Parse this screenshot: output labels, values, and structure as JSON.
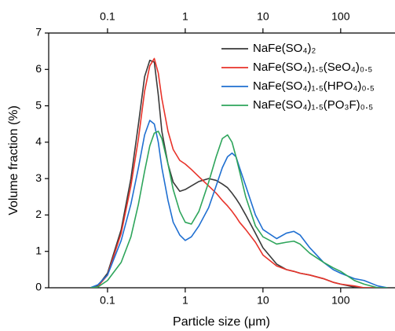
{
  "chart_data": {
    "type": "line",
    "xlabel": "Particle size (μm)",
    "ylabel": "Volume fraction (%)",
    "xscale": "log",
    "xlim": [
      0.0175,
      500
    ],
    "ylim": [
      0,
      7
    ],
    "xticks": [
      0.1,
      1,
      10,
      100
    ],
    "yticks": [
      0,
      1,
      2,
      3,
      4,
      5,
      6,
      7
    ],
    "legend": "upper right",
    "x": [
      0.06,
      0.075,
      0.1,
      0.15,
      0.2,
      0.25,
      0.3,
      0.35,
      0.4,
      0.45,
      0.5,
      0.6,
      0.7,
      0.85,
      1,
      1.2,
      1.5,
      2,
      2.5,
      3,
      3.5,
      4,
      4.5,
      5,
      6,
      8,
      10,
      15,
      20,
      25,
      30,
      40,
      60,
      80,
      100,
      150,
      200,
      300,
      400
    ],
    "series": [
      {
        "name": "NaFe(SO₄)₂",
        "color": "#3a3a3a",
        "values": [
          0,
          0.05,
          0.4,
          1.6,
          3.0,
          4.5,
          5.8,
          6.25,
          6.2,
          5.3,
          4.3,
          3.4,
          2.9,
          2.65,
          2.7,
          2.8,
          2.92,
          3.0,
          2.95,
          2.85,
          2.75,
          2.6,
          2.45,
          2.3,
          2.0,
          1.5,
          1.1,
          0.65,
          0.5,
          0.45,
          0.4,
          0.35,
          0.25,
          0.15,
          0.1,
          0.02,
          0,
          0,
          0
        ]
      },
      {
        "name": "NaFe(SO₄)₁.₅(SeO₄)₀.₅",
        "color": "#e8332a",
        "values": [
          0,
          0.03,
          0.35,
          1.5,
          2.8,
          4.1,
          5.4,
          6.1,
          6.3,
          5.9,
          5.2,
          4.3,
          3.8,
          3.5,
          3.4,
          3.25,
          3.05,
          2.8,
          2.6,
          2.4,
          2.25,
          2.1,
          1.95,
          1.8,
          1.6,
          1.25,
          0.9,
          0.6,
          0.5,
          0.45,
          0.4,
          0.35,
          0.25,
          0.15,
          0.1,
          0.05,
          0,
          0,
          0
        ]
      },
      {
        "name": "NaFe(SO₄)₁.₅(HPO₄)₀.₅",
        "color": "#1f6fd1",
        "values": [
          0,
          0.08,
          0.35,
          1.3,
          2.3,
          3.3,
          4.2,
          4.6,
          4.5,
          4.0,
          3.3,
          2.4,
          1.8,
          1.45,
          1.3,
          1.4,
          1.7,
          2.2,
          2.8,
          3.3,
          3.6,
          3.7,
          3.6,
          3.3,
          2.8,
          2.0,
          1.6,
          1.35,
          1.5,
          1.55,
          1.45,
          1.1,
          0.7,
          0.5,
          0.4,
          0.25,
          0.2,
          0.05,
          0
        ]
      },
      {
        "name": "NaFe(SO₄)₁.₅(PO₃F)₀.₅",
        "color": "#2ea55b",
        "values": [
          0,
          0.02,
          0.2,
          0.7,
          1.4,
          2.3,
          3.2,
          3.9,
          4.25,
          4.3,
          4.1,
          3.4,
          2.7,
          2.1,
          1.8,
          1.75,
          2.1,
          2.9,
          3.6,
          4.1,
          4.2,
          4.0,
          3.6,
          3.2,
          2.5,
          1.7,
          1.4,
          1.2,
          1.25,
          1.28,
          1.2,
          0.95,
          0.7,
          0.55,
          0.45,
          0.2,
          0.1,
          0,
          0
        ]
      }
    ]
  }
}
